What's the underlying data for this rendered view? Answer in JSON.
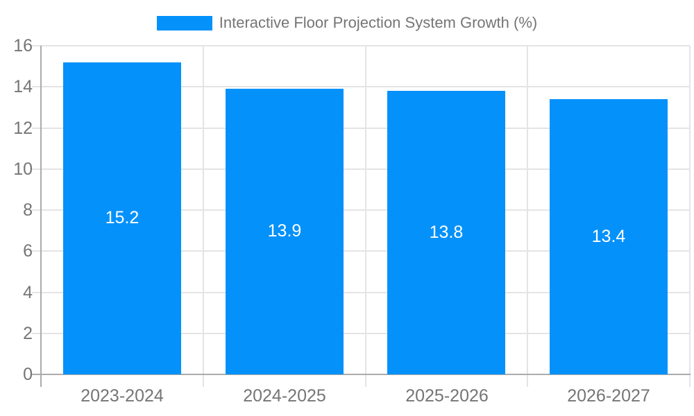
{
  "legend": {
    "label": "Interactive Floor Projection System Growth (%)"
  },
  "colors": {
    "bar": "#0591fa",
    "grid": "#e4e4e4",
    "axis": "#ababab",
    "tick_label": "#757575",
    "legend_label": "#757575",
    "value_label": "#ffffff",
    "background": "#ffffff"
  },
  "chart_data": {
    "type": "bar",
    "categories": [
      "2023-2024",
      "2024-2025",
      "2025-2026",
      "2026-2027"
    ],
    "values": [
      15.2,
      13.9,
      13.8,
      13.4
    ],
    "value_labels": [
      "15.2",
      "13.9",
      "13.8",
      "13.4"
    ],
    "legend": "Interactive Floor Projection System Growth (%)",
    "title": "",
    "xlabel": "",
    "ylabel": "",
    "ylim": [
      0,
      16
    ],
    "yticks": [
      0,
      2,
      4,
      6,
      8,
      10,
      12,
      14,
      16
    ],
    "grid": true,
    "legend_position": "top-center",
    "bar_color": "#0591fa"
  }
}
